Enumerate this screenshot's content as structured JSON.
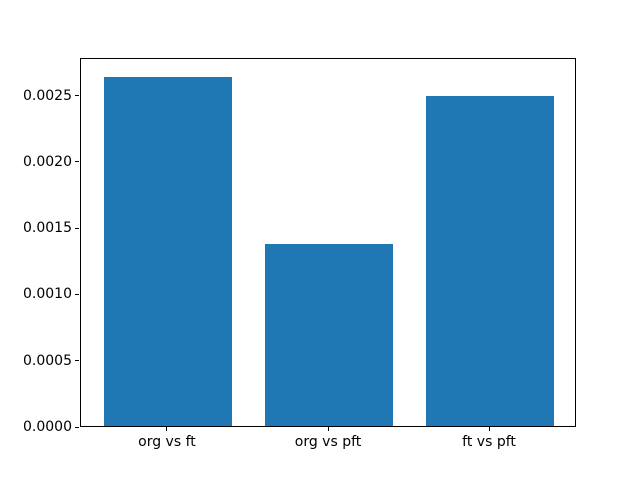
{
  "chart_data": {
    "type": "bar",
    "title": "",
    "xlabel": "",
    "ylabel": "",
    "categories": [
      "org vs ft",
      "org vs pft",
      "ft vs pft"
    ],
    "values": [
      0.00265,
      0.00138,
      0.0025
    ],
    "ylim": [
      0,
      0.002783
    ],
    "ytick_values": [
      0.0,
      0.0005,
      0.001,
      0.0015,
      0.002,
      0.0025
    ],
    "ytick_labels": [
      "0.0000",
      "0.0005",
      "0.0010",
      "0.0015",
      "0.0020",
      "0.0025"
    ],
    "bar_color": "#1f77b4",
    "bar_width_fraction": 0.8,
    "axes_color": "#000000",
    "background_color": "#ffffff",
    "grid": false,
    "legend_position": "none"
  }
}
